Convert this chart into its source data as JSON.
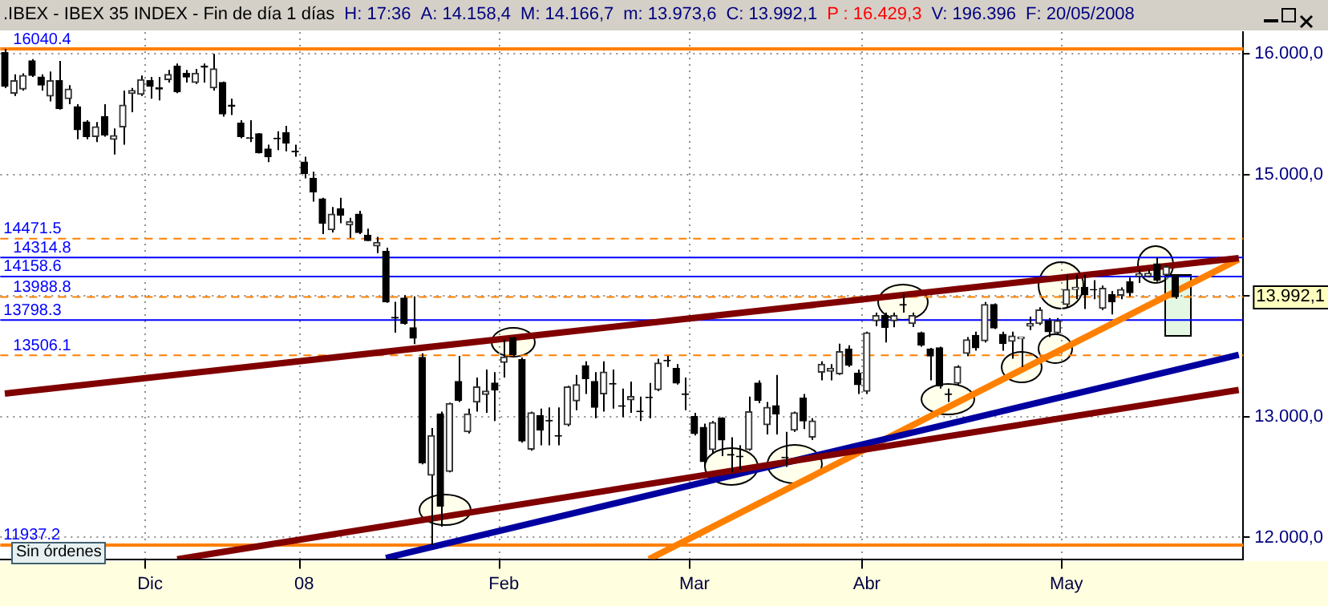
{
  "chart_data": {
    "type": "candlestick",
    "title": ".IBEX - IBEX 35 INDEX - Fin de día 1 días",
    "annotations": [
      "H: 17:36",
      "A: 14.158,4",
      "M: 14.166,7",
      "m: 13.973,6",
      "C: 13.992,1",
      "P : 16.429,3",
      "V: 196.396",
      "F: 20/05/2008",
      "Sin órdenes",
      "13.992,1"
    ],
    "categories": [
      null,
      null,
      null,
      null,
      null,
      null,
      null,
      null,
      null,
      null,
      null,
      null,
      null,
      null,
      null,
      null,
      "Dic",
      null,
      null,
      null,
      null,
      null,
      null,
      null,
      null,
      null,
      null,
      null,
      null,
      null,
      null,
      null,
      null,
      "08",
      null,
      null,
      null,
      null,
      null,
      null,
      null,
      null,
      null,
      null,
      null,
      null,
      null,
      null,
      null,
      null,
      null,
      null,
      null,
      null,
      null,
      "Feb",
      null,
      null,
      null,
      null,
      null,
      null,
      null,
      null,
      null,
      null,
      null,
      null,
      null,
      null,
      null,
      null,
      null,
      null,
      null,
      null,
      "Mar",
      null,
      null,
      null,
      null,
      null,
      null,
      null,
      null,
      null,
      null,
      null,
      null,
      null,
      null,
      null,
      null,
      null,
      null,
      "Abr",
      null,
      null,
      null,
      null,
      null,
      null,
      null,
      null,
      null,
      null,
      null,
      null,
      null,
      null,
      null,
      null,
      null,
      null,
      null,
      null,
      null,
      "May",
      null,
      null,
      null,
      null,
      null,
      null,
      null,
      null,
      null,
      null,
      null,
      null,
      null,
      null,
      null,
      null,
      null,
      null,
      null
    ],
    "ohlc": [
      [
        16010,
        16040.4,
        15718,
        15732
      ],
      [
        15674,
        15830,
        15651,
        15777
      ],
      [
        15709,
        15839,
        15696,
        15821
      ],
      [
        15942,
        15956,
        15808,
        15821
      ],
      [
        15808,
        15830,
        15696,
        15741
      ],
      [
        15651,
        15853,
        15606,
        15777
      ],
      [
        15777,
        15942,
        15539,
        15548
      ],
      [
        15629,
        15741,
        15584,
        15709
      ],
      [
        15562,
        15584,
        15293,
        15373
      ],
      [
        15436,
        15450,
        15293,
        15315
      ],
      [
        15315,
        15436,
        15270,
        15396
      ],
      [
        15481,
        15584,
        15315,
        15329
      ],
      [
        15293,
        15382,
        15167,
        15324
      ],
      [
        15396,
        15696,
        15248,
        15575
      ],
      [
        15674,
        15718,
        15517,
        15696
      ],
      [
        15665,
        15821,
        15651,
        15786
      ],
      [
        15777,
        15808,
        15629,
        15732
      ],
      [
        15720,
        15808,
        15615,
        15709
      ],
      [
        15786,
        15866,
        15763,
        15830
      ],
      [
        15898,
        15920,
        15674,
        15687
      ],
      [
        15839,
        15866,
        15763,
        15808
      ],
      [
        15763,
        15875,
        15750,
        15839
      ],
      [
        15898,
        15920,
        15763,
        15889
      ],
      [
        15718,
        15999,
        15696,
        15875
      ],
      [
        15763,
        15770,
        15481,
        15503
      ],
      [
        15575,
        15629,
        15494,
        15566
      ],
      [
        15427,
        15450,
        15302,
        15315
      ],
      [
        15306,
        15450,
        15270,
        15302
      ],
      [
        15338,
        15345,
        15175,
        15181
      ],
      [
        15212,
        15248,
        15105,
        15149
      ],
      [
        15302,
        15360,
        15203,
        15298
      ],
      [
        15347,
        15405,
        15194,
        15261
      ],
      [
        15194,
        15248,
        15149,
        15190
      ],
      [
        15105,
        15149,
        14970,
        15011
      ],
      [
        14970,
        15024,
        14778,
        14858
      ],
      [
        14800,
        14809,
        14509,
        14598
      ],
      [
        14545,
        14733,
        14522,
        14674
      ],
      [
        14719,
        14809,
        14598,
        14666
      ],
      [
        14585,
        14643,
        14477,
        14612
      ],
      [
        14674,
        14701,
        14509,
        14522
      ],
      [
        14500,
        14554,
        14451,
        14455
      ],
      [
        14410,
        14486,
        14352,
        14441
      ],
      [
        14365,
        14397,
        13940,
        13949
      ],
      [
        13820,
        13949,
        13693,
        13814
      ],
      [
        13980,
        14003,
        13760,
        13770
      ],
      [
        13734,
        13994,
        13599,
        13649
      ],
      [
        13488,
        13523,
        12605,
        12618
      ],
      [
        12515,
        12905,
        11937.2,
        12842
      ],
      [
        13022,
        13040,
        12090,
        12260
      ],
      [
        12546,
        13115,
        12538,
        13107
      ],
      [
        13290,
        13501,
        13120,
        13134
      ],
      [
        12874,
        13066,
        12860,
        13022
      ],
      [
        13120,
        13322,
        13040,
        13245
      ],
      [
        13183,
        13389,
        13031,
        13210
      ],
      [
        13277,
        13367,
        12963,
        13219
      ],
      [
        13447,
        13635,
        13322,
        13492
      ],
      [
        13649,
        13660,
        13501,
        13510
      ],
      [
        13470,
        13488,
        12784,
        12798
      ],
      [
        12730,
        13040,
        12717,
        13031
      ],
      [
        13008,
        13066,
        12762,
        12887
      ],
      [
        12968,
        13075,
        12762,
        12963
      ],
      [
        12843,
        13075,
        12762,
        12838
      ],
      [
        12932,
        13255,
        12919,
        13245
      ],
      [
        13129,
        13344,
        13053,
        13263
      ],
      [
        13420,
        13456,
        13187,
        13313
      ],
      [
        13290,
        13367,
        12986,
        13076
      ],
      [
        13187,
        13456,
        13040,
        13367
      ],
      [
        13274,
        13389,
        13066,
        13268
      ],
      [
        13090,
        13232,
        12995,
        13084
      ],
      [
        13138,
        13290,
        13031,
        13165
      ],
      [
        13044,
        13165,
        12963,
        13040
      ],
      [
        13160,
        13277,
        12986,
        13156
      ],
      [
        13223,
        13479,
        13210,
        13443
      ],
      [
        13465,
        13501,
        13411,
        13461
      ],
      [
        13398,
        13434,
        13264,
        13277
      ],
      [
        13187,
        13322,
        13053,
        13183
      ],
      [
        12999,
        13031,
        12843,
        12860
      ],
      [
        12910,
        12941,
        12583,
        12627
      ],
      [
        12726,
        12963,
        12695,
        12950
      ],
      [
        12986,
        12995,
        12672,
        12807
      ],
      [
        12686,
        12829,
        12538,
        12681
      ],
      [
        12672,
        12762,
        12560,
        12667
      ],
      [
        12726,
        13165,
        12717,
        13040
      ],
      [
        13277,
        13299,
        13111,
        13134
      ],
      [
        12932,
        13120,
        12851,
        13076
      ],
      [
        13089,
        13344,
        12851,
        13022
      ],
      [
        12663,
        12874,
        12583,
        12658
      ],
      [
        12887,
        13040,
        12874,
        13031
      ],
      [
        13152,
        13187,
        12896,
        12963
      ],
      [
        12829,
        12986,
        12807,
        12963
      ],
      [
        13366,
        13456,
        13299,
        13433
      ],
      [
        13375,
        13433,
        13299,
        13397
      ],
      [
        13353,
        13603,
        13344,
        13536
      ],
      [
        13559,
        13590,
        13411,
        13424
      ],
      [
        13357,
        13388,
        13187,
        13263
      ],
      [
        13209,
        13702,
        13187,
        13693
      ],
      [
        13792,
        13859,
        13747,
        13836
      ],
      [
        13836,
        13859,
        13612,
        13738
      ],
      [
        13792,
        13859,
        13738,
        13836
      ],
      [
        13926,
        14016,
        13859,
        13922
      ],
      [
        13769,
        13860,
        13740,
        13836
      ],
      [
        13693,
        13702,
        13577,
        13590
      ],
      [
        13559,
        13568,
        13299,
        13500
      ],
      [
        13568,
        13577,
        13232,
        13254
      ],
      [
        13187,
        13232,
        13120,
        13183
      ],
      [
        13276,
        13424,
        13254,
        13411
      ],
      [
        13523,
        13657,
        13500,
        13635
      ],
      [
        13671,
        13702,
        13545,
        13568
      ],
      [
        13626,
        13948,
        13612,
        13926
      ],
      [
        13926,
        13935,
        13724,
        13733
      ],
      [
        13680,
        13702,
        13545,
        13603
      ],
      [
        13621,
        13702,
        13478,
        13666
      ],
      [
        13644,
        13660,
        13411,
        13657
      ],
      [
        13747,
        13827,
        13715,
        13769
      ],
      [
        13769,
        13904,
        13756,
        13881
      ],
      [
        13792,
        13814,
        13657,
        13702
      ],
      [
        13693,
        13814,
        13680,
        13792
      ],
      [
        13926,
        14172,
        13904,
        14051
      ],
      [
        14051,
        14172,
        13971,
        14069
      ],
      [
        14069,
        14172,
        13890,
        14007
      ],
      [
        14051,
        14128,
        13971,
        14047
      ],
      [
        13895,
        14083,
        13881,
        14060
      ],
      [
        14007,
        14038,
        13845,
        13948
      ],
      [
        14003,
        14069,
        13971,
        14051
      ],
      [
        14114,
        14150,
        13993,
        14025
      ],
      [
        14159,
        14217,
        14105,
        14181
      ],
      [
        14160,
        14217,
        14150,
        14185
      ],
      [
        14262,
        14314.8,
        14114,
        14128
      ],
      [
        14172,
        14249,
        14159,
        14240
      ],
      [
        14158.4,
        14166.7,
        13973.6,
        13992.1
      ],
      null,
      null,
      null,
      null,
      null,
      null,
      null
    ],
    "series": [
      {
        "type": "line",
        "color": "#800000",
        "values": [
          13190,
          null,
          null,
          null,
          null,
          null,
          null,
          null,
          null,
          null,
          null,
          null,
          null,
          null,
          null,
          null,
          null,
          null,
          null,
          null,
          null,
          null,
          null,
          null,
          null,
          null,
          null,
          null,
          null,
          null,
          null,
          null,
          null,
          null,
          null,
          null,
          null,
          null,
          null,
          null,
          null,
          null,
          null,
          null,
          null,
          null,
          null,
          null,
          null,
          null,
          null,
          null,
          null,
          null,
          null,
          null,
          null,
          null,
          null,
          null,
          null,
          null,
          null,
          null,
          null,
          null,
          null,
          null,
          null,
          null,
          null,
          null,
          null,
          null,
          null,
          null,
          null,
          null,
          null,
          null,
          null,
          null,
          null,
          null,
          null,
          null,
          null,
          null,
          null,
          null,
          null,
          null,
          null,
          null,
          null,
          null,
          null,
          null,
          null,
          null,
          null,
          null,
          null,
          null,
          null,
          null,
          null,
          null,
          null,
          null,
          null,
          null,
          null,
          null,
          null,
          null,
          null,
          null,
          null,
          null,
          null,
          null,
          null,
          null,
          null,
          null,
          null,
          null,
          null,
          null,
          null,
          null,
          null,
          null,
          null,
          null,
          14310
        ]
      },
      {
        "type": "line",
        "color": "#800000",
        "values": [
          null,
          null,
          null,
          null,
          null,
          null,
          null,
          null,
          null,
          null,
          null,
          null,
          null,
          null,
          null,
          null,
          null,
          null,
          null,
          11820,
          null,
          null,
          null,
          null,
          null,
          null,
          null,
          null,
          null,
          null,
          null,
          null,
          null,
          null,
          null,
          null,
          null,
          null,
          null,
          null,
          null,
          null,
          null,
          null,
          null,
          null,
          null,
          null,
          null,
          null,
          null,
          null,
          null,
          null,
          null,
          null,
          null,
          null,
          null,
          null,
          null,
          null,
          null,
          null,
          null,
          null,
          null,
          null,
          null,
          null,
          null,
          null,
          null,
          null,
          null,
          null,
          null,
          null,
          null,
          null,
          null,
          null,
          null,
          null,
          null,
          null,
          null,
          null,
          null,
          null,
          null,
          null,
          null,
          null,
          null,
          null,
          null,
          null,
          null,
          null,
          null,
          null,
          null,
          null,
          null,
          null,
          null,
          null,
          null,
          null,
          null,
          null,
          null,
          null,
          null,
          null,
          null,
          null,
          null,
          null,
          null,
          null,
          null,
          null,
          null,
          null,
          null,
          null,
          null,
          null,
          null,
          null,
          null,
          null,
          null,
          null,
          13220
        ]
      },
      {
        "type": "line",
        "color": "#0000a0",
        "values": [
          null,
          null,
          null,
          null,
          null,
          null,
          null,
          null,
          null,
          null,
          null,
          null,
          null,
          null,
          null,
          null,
          null,
          null,
          null,
          null,
          null,
          null,
          null,
          null,
          null,
          null,
          null,
          null,
          null,
          null,
          null,
          null,
          null,
          null,
          null,
          null,
          null,
          null,
          null,
          null,
          null,
          null,
          11830,
          null,
          null,
          null,
          null,
          null,
          null,
          null,
          null,
          null,
          null,
          null,
          null,
          null,
          null,
          null,
          null,
          null,
          null,
          null,
          null,
          null,
          null,
          null,
          null,
          null,
          null,
          null,
          null,
          null,
          null,
          null,
          null,
          null,
          null,
          null,
          null,
          null,
          null,
          null,
          null,
          null,
          null,
          null,
          null,
          null,
          null,
          null,
          null,
          null,
          null,
          null,
          null,
          null,
          null,
          null,
          null,
          null,
          null,
          null,
          null,
          null,
          null,
          null,
          null,
          null,
          null,
          null,
          null,
          null,
          null,
          null,
          null,
          null,
          null,
          null,
          null,
          null,
          null,
          null,
          null,
          null,
          null,
          null,
          null,
          null,
          null,
          null,
          null,
          null,
          null,
          null,
          null,
          null,
          13510
        ]
      },
      {
        "type": "line",
        "color": "#ff8000",
        "values": [
          null,
          null,
          null,
          null,
          null,
          null,
          null,
          null,
          null,
          null,
          null,
          null,
          null,
          null,
          null,
          null,
          null,
          null,
          null,
          null,
          null,
          null,
          null,
          null,
          null,
          null,
          null,
          null,
          null,
          null,
          null,
          null,
          null,
          null,
          null,
          null,
          null,
          null,
          null,
          null,
          null,
          null,
          null,
          null,
          null,
          null,
          null,
          null,
          null,
          null,
          null,
          null,
          null,
          null,
          null,
          null,
          null,
          null,
          null,
          null,
          null,
          null,
          null,
          null,
          null,
          null,
          null,
          null,
          null,
          null,
          null,
          11820,
          null,
          null,
          null,
          null,
          null,
          null,
          null,
          null,
          null,
          null,
          null,
          null,
          null,
          null,
          null,
          null,
          null,
          null,
          null,
          null,
          null,
          null,
          null,
          null,
          null,
          null,
          null,
          null,
          null,
          null,
          null,
          null,
          null,
          null,
          null,
          null,
          null,
          null,
          null,
          null,
          null,
          null,
          null,
          null,
          null,
          null,
          null,
          null,
          null,
          null,
          null,
          null,
          null,
          null,
          null,
          null,
          null,
          null,
          null,
          null,
          null,
          null,
          null,
          null,
          14300
        ]
      }
    ],
    "ylim": [
      11820,
      16180
    ],
    "yticks": [
      {
        "value": 12000,
        "label": "12.000,0"
      },
      {
        "value": 13000,
        "label": "13.000,0"
      },
      {
        "value": 14000,
        "label": null
      },
      {
        "value": 15000,
        "label": "15.000,0"
      },
      {
        "value": 16000,
        "label": "16.000,0"
      }
    ],
    "ref_lines": [
      {
        "axis": "y",
        "value": 16040.4,
        "label": "16040.4",
        "color": "#ff8000",
        "line_style": "solid"
      },
      {
        "axis": "y",
        "value": 14471.5,
        "label": "14471.5",
        "color": "#ff8000",
        "line_style": "dashed"
      },
      {
        "axis": "y",
        "value": 14314.8,
        "label": "14314.8",
        "color": "#0000ff",
        "line_style": "solid"
      },
      {
        "axis": "y",
        "value": 14158.6,
        "label": "14158.6",
        "color": "#0000ff",
        "line_style": "solid"
      },
      {
        "axis": "y",
        "value": 13988.8,
        "label": "13988.8",
        "color": "#ff8000",
        "line_style": "dashed"
      },
      {
        "axis": "y",
        "value": 13798.3,
        "label": "13798.3",
        "color": "#0000ff",
        "line_style": "solid"
      },
      {
        "axis": "y",
        "value": 13506.1,
        "label": "13506.1",
        "color": "#ff8000",
        "line_style": "dashed"
      },
      {
        "axis": "y",
        "value": 11937.2,
        "label": "11937.2",
        "color": "#ff8000",
        "line_style": "solid"
      }
    ],
    "grid": true
  }
}
